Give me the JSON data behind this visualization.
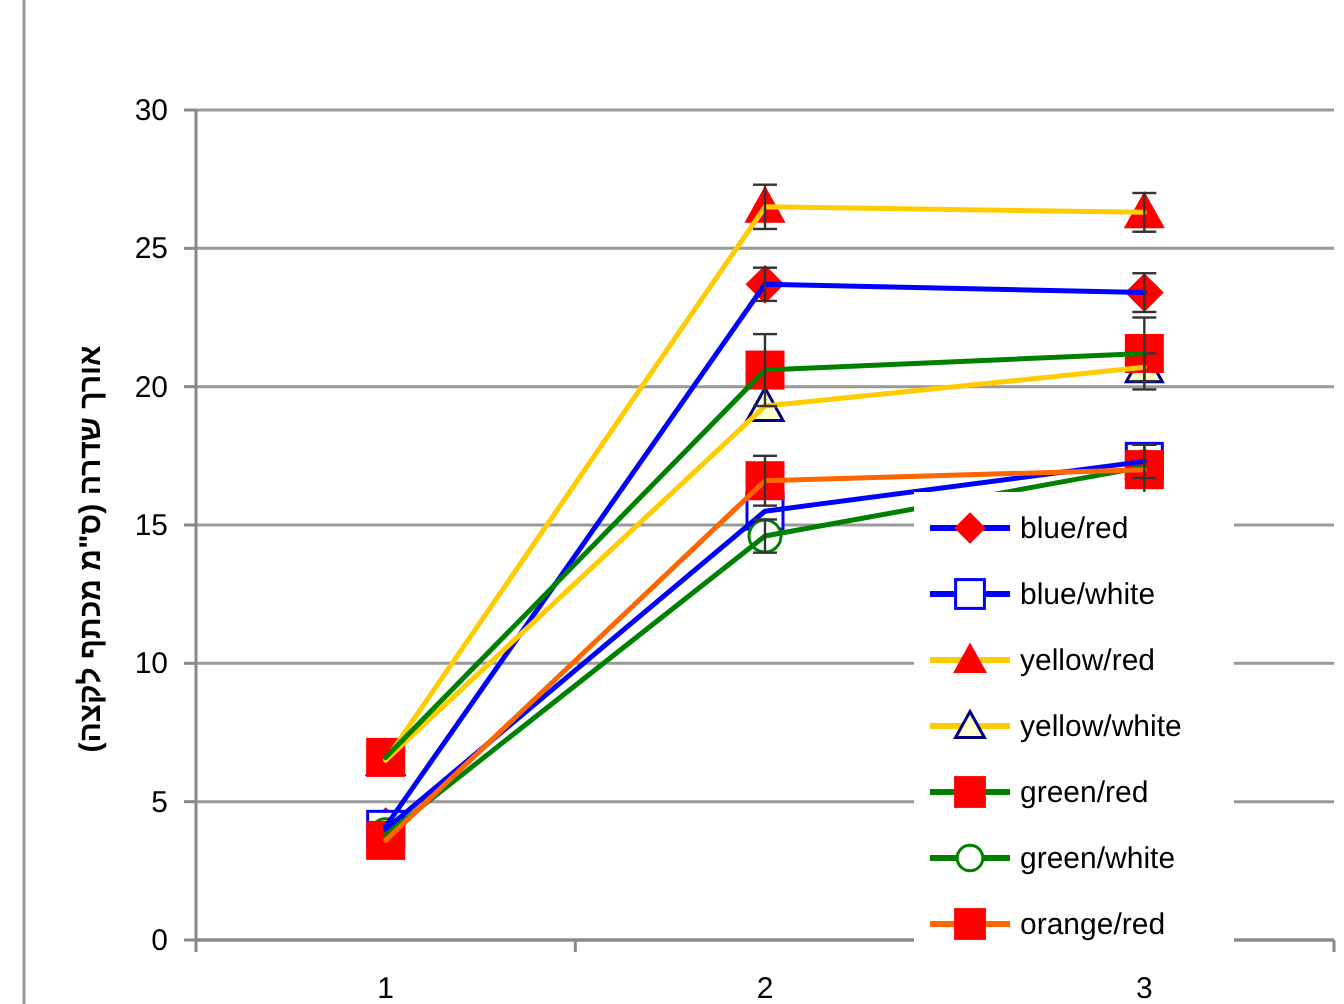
{
  "chart_data": {
    "type": "line",
    "ylabel": "אורך שדרה (ס\"מ מכתף לקצה)",
    "categories": [
      "1",
      "2",
      "3"
    ],
    "ylim": [
      0,
      30
    ],
    "yticks": [
      0,
      5,
      10,
      15,
      20,
      25,
      30
    ],
    "grid": "y",
    "legend": "bottom right",
    "line_style": "solid",
    "series": [
      {
        "name": "blue/red",
        "color": "#0000ff",
        "marker": "diamond",
        "values": [
          4.1,
          23.7,
          23.4
        ],
        "errors": [
          null,
          0.6,
          0.7
        ]
      },
      {
        "name": "blue/white",
        "color": "#0000ff",
        "marker": "square",
        "values": [
          4.0,
          15.5,
          17.3
        ],
        "errors": [
          null,
          null,
          0.6
        ]
      },
      {
        "name": "yellow/red",
        "color": "#ffcc00",
        "marker": "triangle",
        "values": [
          6.5,
          26.5,
          26.3
        ],
        "errors": [
          null,
          0.8,
          0.7
        ]
      },
      {
        "name": "yellow/white",
        "color": "#ffcc00",
        "marker": "triangle",
        "values": [
          6.5,
          19.3,
          20.7
        ],
        "errors": [
          null,
          null,
          0.5
        ]
      },
      {
        "name": "green/red",
        "color": "#008000",
        "marker": "square",
        "values": [
          6.6,
          20.6,
          21.2
        ],
        "errors": [
          null,
          1.3,
          1.3
        ]
      },
      {
        "name": "green/white",
        "color": "#008000",
        "marker": "circle",
        "values": [
          3.8,
          14.6,
          17.1
        ],
        "errors": [
          null,
          0.6,
          null
        ]
      },
      {
        "name": "orange/red",
        "color": "#ff6600",
        "marker": "square",
        "values": [
          3.6,
          16.6,
          17.0
        ],
        "errors": [
          null,
          0.9,
          0.9
        ]
      }
    ]
  }
}
